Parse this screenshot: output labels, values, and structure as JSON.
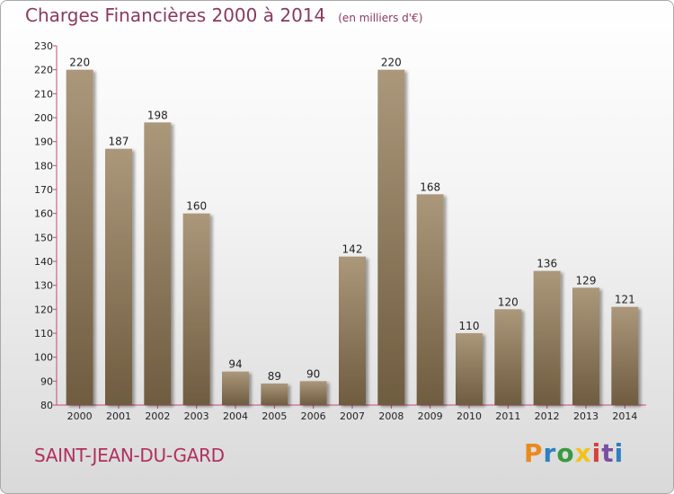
{
  "title": "Charges Financières 2000 à 2014",
  "unit": "(en milliers d'€)",
  "town": "SAINT-JEAN-DU-GARD",
  "brand": {
    "letters": [
      "P",
      "r",
      "o",
      "x",
      "i",
      "t",
      "i"
    ],
    "colors": [
      "#e98a1e",
      "#2f7fc1",
      "#3a9a3c",
      "#f2c21b",
      "#d8403a",
      "#7a4fa0",
      "#2f7fc1"
    ]
  },
  "colors": {
    "bar_top": "#ab977a",
    "bar_bottom": "#6f5c40",
    "title": "#8a3a5e",
    "town": "#b0305e"
  },
  "chart_data": {
    "type": "bar",
    "title": "Charges Financières 2000 à 2014",
    "subtitle": "(en milliers d'€)",
    "categories": [
      "2000",
      "2001",
      "2002",
      "2003",
      "2004",
      "2005",
      "2006",
      "2007",
      "2008",
      "2009",
      "2010",
      "2011",
      "2012",
      "2013",
      "2014"
    ],
    "values": [
      220,
      187,
      198,
      160,
      94,
      89,
      90,
      142,
      220,
      168,
      110,
      120,
      136,
      129,
      121
    ],
    "ylim": [
      80,
      230
    ],
    "yticks": [
      80,
      90,
      100,
      110,
      120,
      130,
      140,
      150,
      160,
      170,
      180,
      190,
      200,
      210,
      220,
      230
    ],
    "grid": false,
    "data_labels": true
  }
}
